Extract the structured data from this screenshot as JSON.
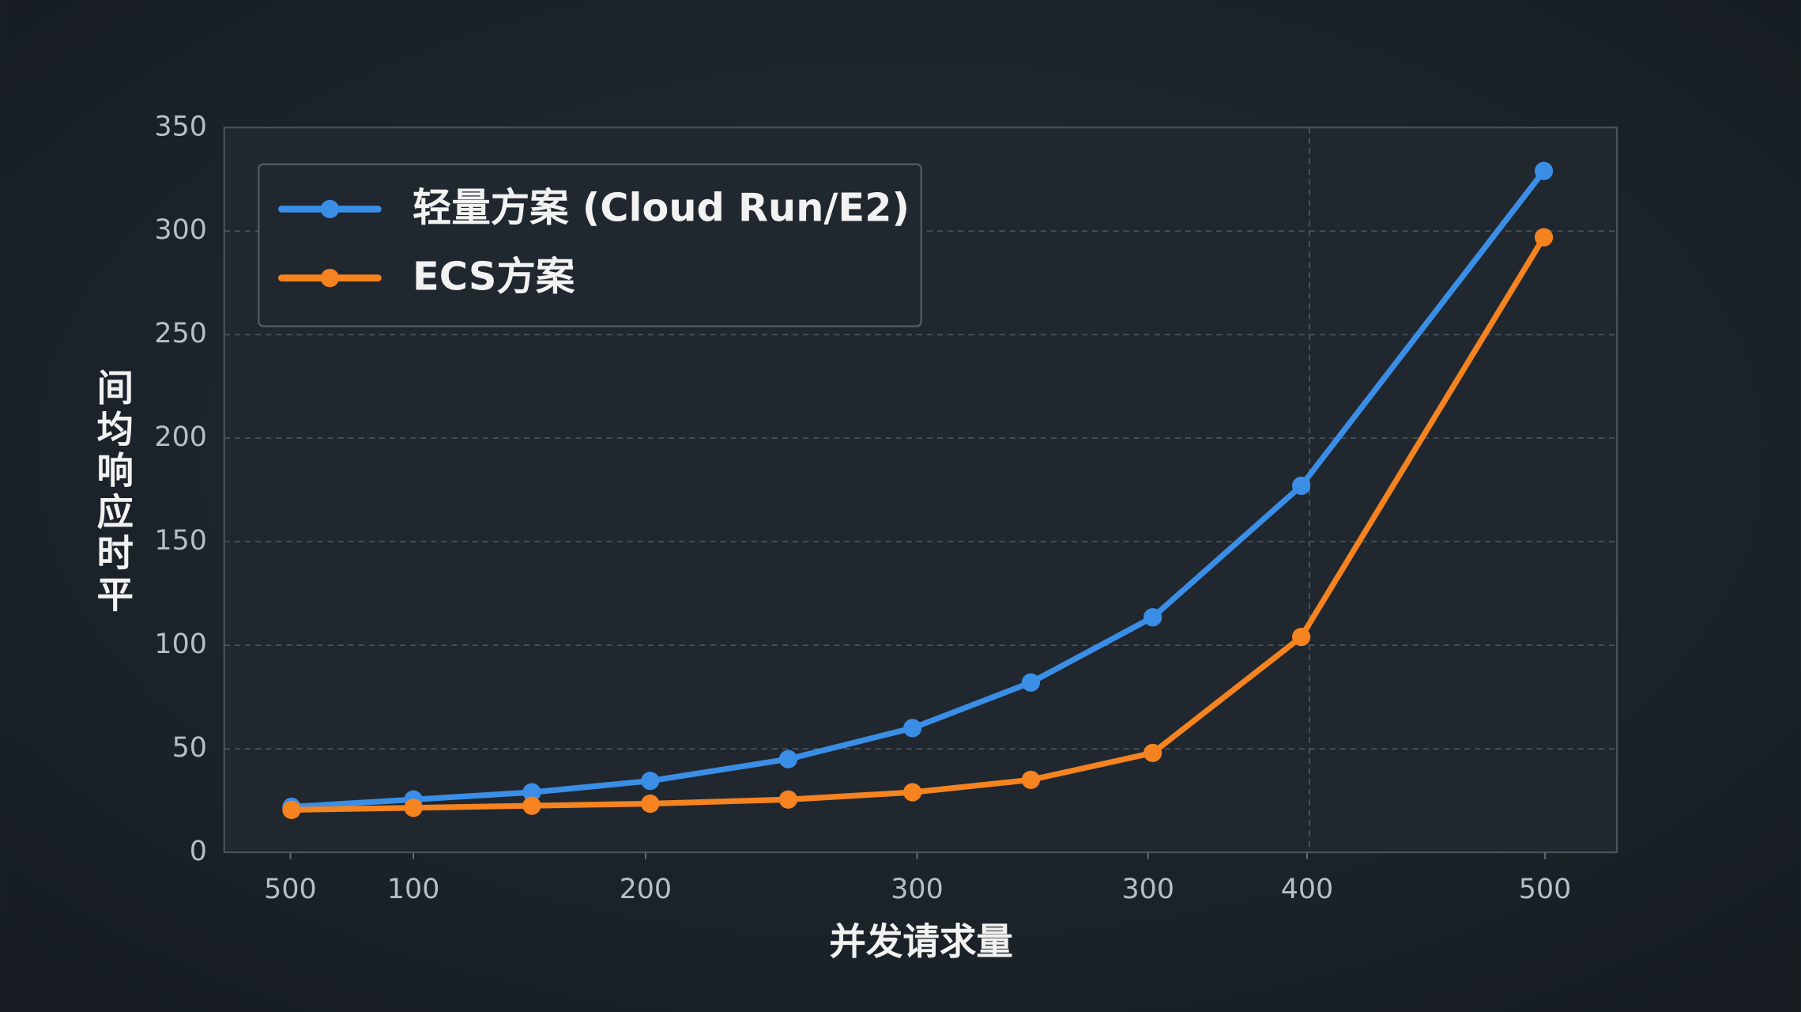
{
  "chart_data": {
    "type": "line",
    "x_label": "并发请求量",
    "y_label": "间均响应时平",
    "x": [
      0.58,
      1.63,
      2.65,
      3.67,
      4.86,
      5.93,
      6.95,
      8.0,
      9.28,
      11.37
    ],
    "series": [
      {
        "name": "轻量方案 (Cloud Run/E2)",
        "color": "#3a8ee6",
        "values": [
          22,
          25.5,
          29,
          34.5,
          45,
          60,
          82,
          113.5,
          177,
          329
        ]
      },
      {
        "name": "ECS方案",
        "color": "#f5831f",
        "values": [
          20.5,
          21.5,
          22.5,
          23.5,
          25.5,
          29,
          35,
          48,
          104,
          297
        ]
      }
    ],
    "xlim": [
      0,
      12
    ],
    "xticks": [
      {
        "value": 0.57,
        "label": "500"
      },
      {
        "value": 1.63,
        "label": "100"
      },
      {
        "value": 3.63,
        "label": "200"
      },
      {
        "value": 5.97,
        "label": "300"
      },
      {
        "value": 7.96,
        "label": "300"
      },
      {
        "value": 9.33,
        "label": "400"
      },
      {
        "value": 11.38,
        "label": "500"
      }
    ],
    "ylim": [
      0,
      350
    ],
    "yticks": [
      0,
      50,
      100,
      150,
      200,
      250,
      300,
      350
    ],
    "vline_x": 9.35,
    "grid": true,
    "legend": "upper left"
  }
}
